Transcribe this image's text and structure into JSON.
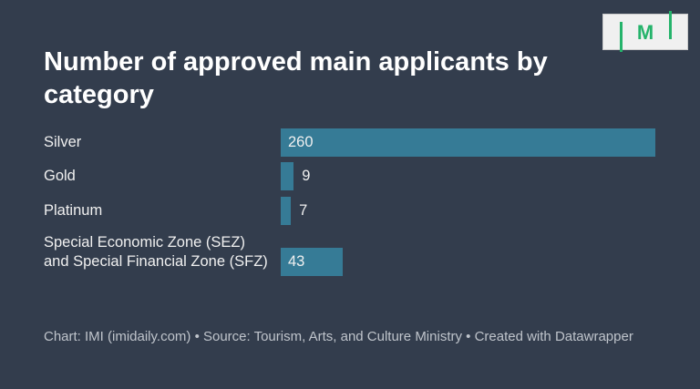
{
  "chart_data": {
    "type": "bar",
    "orientation": "horizontal",
    "title": "Number of approved main applicants by category",
    "categories": [
      "Silver",
      "Gold",
      "Platinum",
      "Special Economic Zone (SEZ) and Special Financial Zone (SFZ)"
    ],
    "values": [
      260,
      9,
      7,
      43
    ],
    "value_labels": [
      "260",
      "9",
      "7",
      "43"
    ],
    "xlim": [
      0,
      260
    ],
    "grid": false,
    "bar_color": "#367b96",
    "background": "#333d4d"
  },
  "footer": "Chart: IMI (imidaily.com) • Source: Tourism, Arts, and Culture Ministry • Created with Datawrapper",
  "logo": {
    "text": "IMI",
    "color": "#25b36b"
  }
}
